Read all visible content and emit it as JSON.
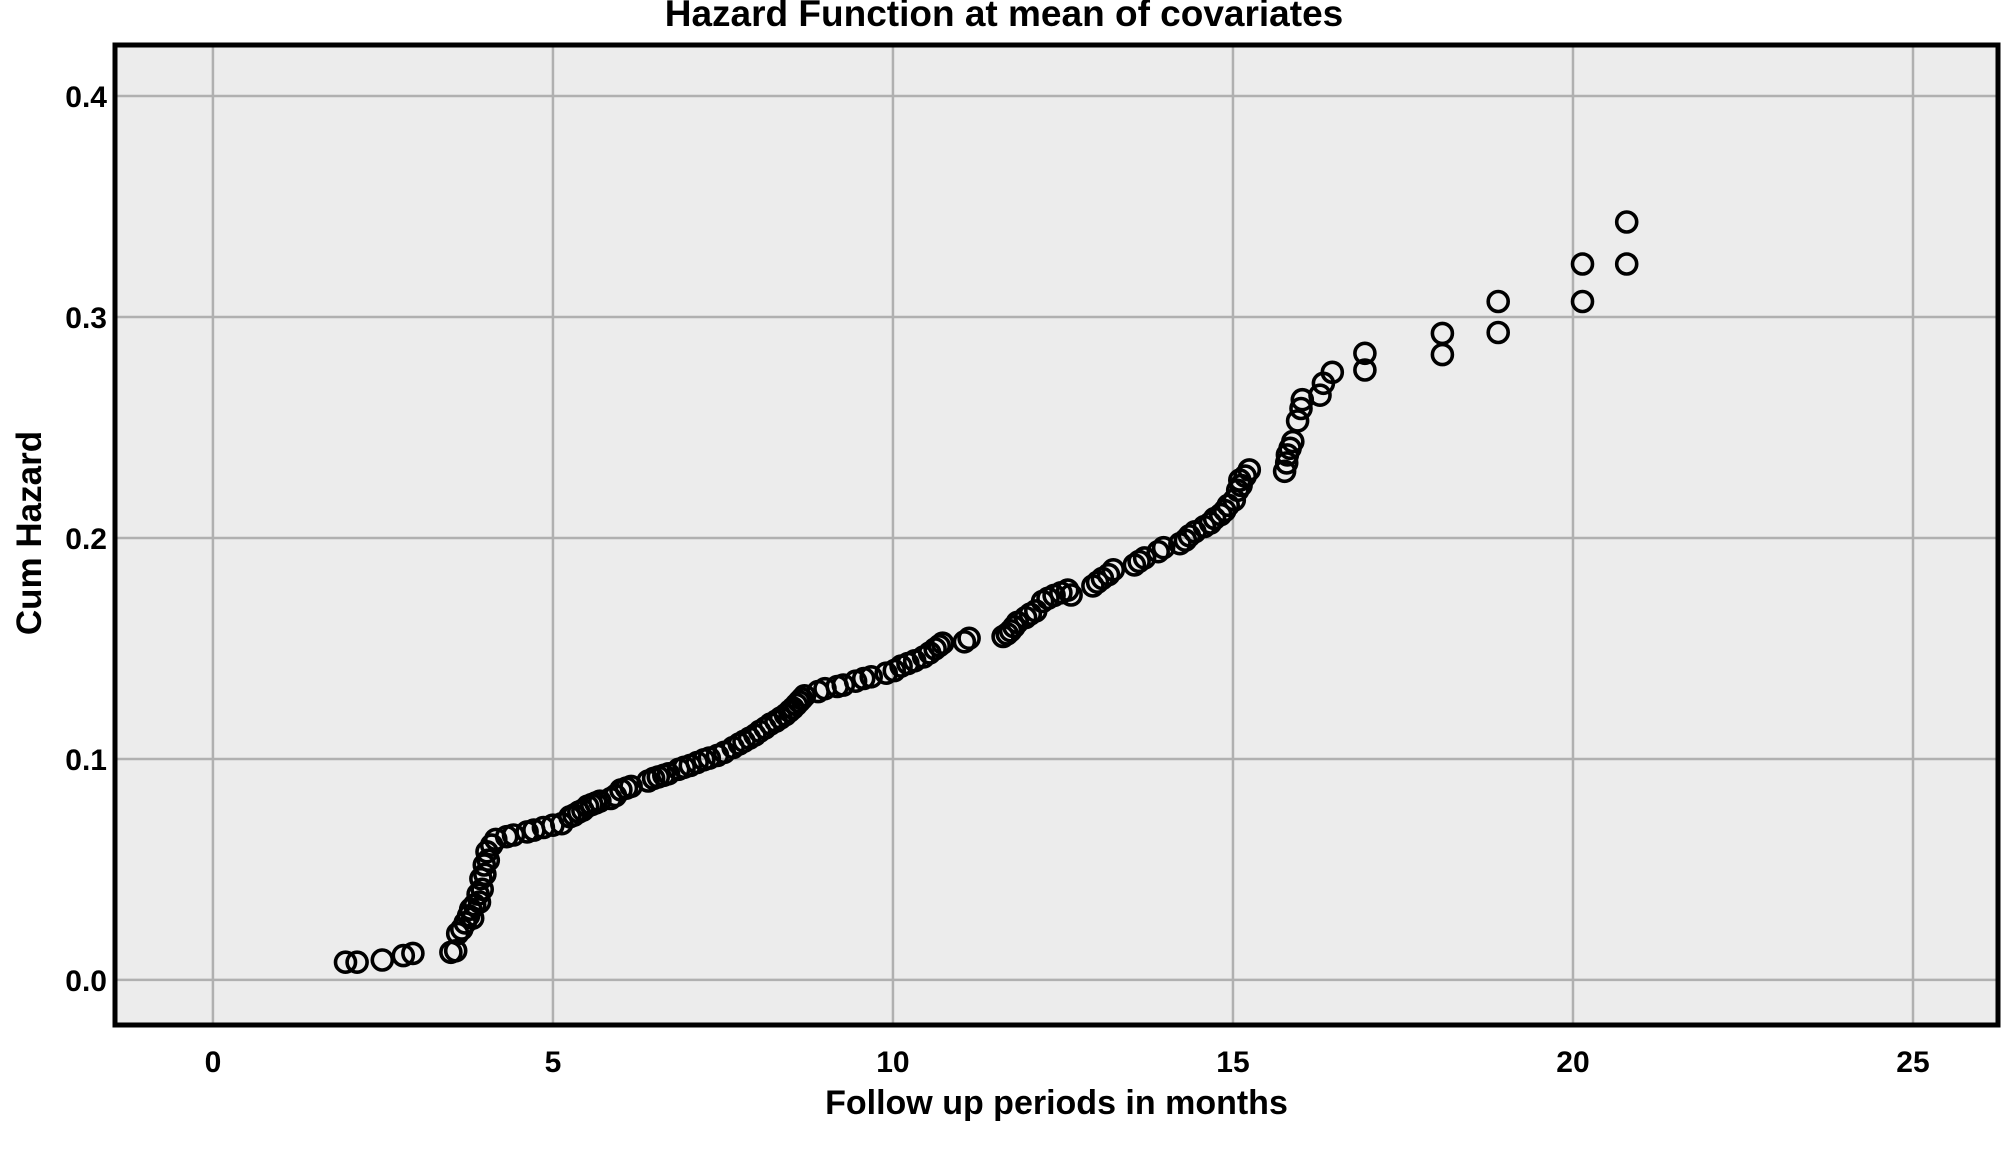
{
  "chart_data": {
    "type": "scatter",
    "title": "Hazard Function at mean of covariates",
    "xlabel": "Follow up periods in months",
    "ylabel": "Cum Hazard",
    "legend": "none",
    "grid": true,
    "plot_background": "#ececec",
    "grid_color": "#b0b0b0",
    "frame_color": "#000000",
    "marker": {
      "shape": "open-circle",
      "radius_px": 10,
      "stroke_px": 3.6,
      "color": "#000000"
    },
    "xlim": [
      -1.44,
      26.25
    ],
    "ylim": [
      -0.0204,
      0.4231
    ],
    "x_ticks": [
      0,
      5,
      10,
      15,
      20,
      25
    ],
    "x_tick_labels": [
      "0",
      "5",
      "10",
      "15",
      "20",
      "25"
    ],
    "y_ticks": [
      0.0,
      0.1,
      0.2,
      0.3,
      0.4
    ],
    "y_tick_labels": [
      "0.0",
      "0.1",
      "0.2",
      "0.3",
      "0.4"
    ],
    "points": [
      [
        1.95,
        0.008
      ],
      [
        2.12,
        0.008
      ],
      [
        2.49,
        0.009
      ],
      [
        2.8,
        0.011
      ],
      [
        2.94,
        0.012
      ],
      [
        3.5,
        0.0125
      ],
      [
        3.57,
        0.0132
      ],
      [
        3.6,
        0.021
      ],
      [
        3.66,
        0.023
      ],
      [
        3.71,
        0.0258
      ],
      [
        3.76,
        0.029
      ],
      [
        3.82,
        0.028
      ],
      [
        3.79,
        0.032
      ],
      [
        3.85,
        0.034
      ],
      [
        3.92,
        0.0352
      ],
      [
        3.9,
        0.0388
      ],
      [
        3.96,
        0.041
      ],
      [
        3.94,
        0.0458
      ],
      [
        4.0,
        0.0478
      ],
      [
        3.99,
        0.052
      ],
      [
        4.05,
        0.0542
      ],
      [
        4.03,
        0.058
      ],
      [
        4.1,
        0.061
      ],
      [
        4.16,
        0.0636
      ],
      [
        4.32,
        0.0648
      ],
      [
        4.42,
        0.0656
      ],
      [
        4.62,
        0.067
      ],
      [
        4.72,
        0.0678
      ],
      [
        4.86,
        0.069
      ],
      [
        5.0,
        0.07
      ],
      [
        5.13,
        0.0707
      ],
      [
        5.25,
        0.0738
      ],
      [
        5.31,
        0.0746
      ],
      [
        5.38,
        0.076
      ],
      [
        5.44,
        0.0768
      ],
      [
        5.51,
        0.0786
      ],
      [
        5.57,
        0.0794
      ],
      [
        5.63,
        0.0801
      ],
      [
        5.69,
        0.0809
      ],
      [
        5.85,
        0.0821
      ],
      [
        5.92,
        0.0834
      ],
      [
        6.0,
        0.086
      ],
      [
        6.08,
        0.0868
      ],
      [
        6.15,
        0.0876
      ],
      [
        6.4,
        0.09
      ],
      [
        6.48,
        0.0912
      ],
      [
        6.55,
        0.0919
      ],
      [
        6.63,
        0.0926
      ],
      [
        6.7,
        0.0933
      ],
      [
        6.85,
        0.0953
      ],
      [
        6.93,
        0.0962
      ],
      [
        7.02,
        0.0971
      ],
      [
        7.12,
        0.0984
      ],
      [
        7.22,
        0.0996
      ],
      [
        7.3,
        0.1004
      ],
      [
        7.42,
        0.1016
      ],
      [
        7.52,
        0.103
      ],
      [
        7.65,
        0.1052
      ],
      [
        7.74,
        0.1068
      ],
      [
        7.81,
        0.108
      ],
      [
        7.89,
        0.1094
      ],
      [
        7.97,
        0.1108
      ],
      [
        8.04,
        0.1125
      ],
      [
        8.12,
        0.114
      ],
      [
        8.2,
        0.1158
      ],
      [
        8.28,
        0.1171
      ],
      [
        8.35,
        0.1186
      ],
      [
        8.42,
        0.12
      ],
      [
        8.48,
        0.1216
      ],
      [
        8.53,
        0.123
      ],
      [
        8.58,
        0.1246
      ],
      [
        8.62,
        0.1259
      ],
      [
        8.66,
        0.1272
      ],
      [
        8.7,
        0.1286
      ],
      [
        8.9,
        0.1305
      ],
      [
        9.0,
        0.1318
      ],
      [
        9.18,
        0.1328
      ],
      [
        9.27,
        0.1334
      ],
      [
        9.45,
        0.1352
      ],
      [
        9.57,
        0.1364
      ],
      [
        9.68,
        0.1372
      ],
      [
        9.9,
        0.1388
      ],
      [
        10.02,
        0.14
      ],
      [
        10.12,
        0.142
      ],
      [
        10.22,
        0.1432
      ],
      [
        10.32,
        0.1444
      ],
      [
        10.45,
        0.1462
      ],
      [
        10.54,
        0.148
      ],
      [
        10.62,
        0.1498
      ],
      [
        10.68,
        0.1512
      ],
      [
        10.73,
        0.1524
      ],
      [
        11.05,
        0.153
      ],
      [
        11.12,
        0.1546
      ],
      [
        11.62,
        0.1554
      ],
      [
        11.68,
        0.1566
      ],
      [
        11.73,
        0.158
      ],
      [
        11.78,
        0.1598
      ],
      [
        11.83,
        0.1618
      ],
      [
        11.95,
        0.164
      ],
      [
        12.02,
        0.1656
      ],
      [
        12.1,
        0.167
      ],
      [
        12.2,
        0.1713
      ],
      [
        12.28,
        0.1727
      ],
      [
        12.37,
        0.174
      ],
      [
        12.47,
        0.1752
      ],
      [
        12.57,
        0.1764
      ],
      [
        12.62,
        0.1742
      ],
      [
        12.94,
        0.1783
      ],
      [
        13.01,
        0.18
      ],
      [
        13.08,
        0.1817
      ],
      [
        13.17,
        0.1834
      ],
      [
        13.24,
        0.1856
      ],
      [
        13.55,
        0.1878
      ],
      [
        13.62,
        0.1894
      ],
      [
        13.7,
        0.191
      ],
      [
        13.9,
        0.1938
      ],
      [
        13.98,
        0.1956
      ],
      [
        14.22,
        0.1974
      ],
      [
        14.3,
        0.199
      ],
      [
        14.36,
        0.201
      ],
      [
        14.44,
        0.2028
      ],
      [
        14.58,
        0.2052
      ],
      [
        14.67,
        0.2068
      ],
      [
        14.73,
        0.2088
      ],
      [
        14.82,
        0.2106
      ],
      [
        14.88,
        0.2124
      ],
      [
        14.93,
        0.2148
      ],
      [
        15.02,
        0.2172
      ],
      [
        15.07,
        0.2216
      ],
      [
        15.12,
        0.2238
      ],
      [
        15.1,
        0.2262
      ],
      [
        15.18,
        0.228
      ],
      [
        15.24,
        0.2308
      ],
      [
        15.76,
        0.2302
      ],
      [
        15.79,
        0.234
      ],
      [
        15.8,
        0.2376
      ],
      [
        15.84,
        0.2406
      ],
      [
        15.88,
        0.2436
      ],
      [
        15.95,
        0.253
      ],
      [
        16.0,
        0.2586
      ],
      [
        16.02,
        0.2626
      ],
      [
        16.28,
        0.2646
      ],
      [
        16.33,
        0.27
      ],
      [
        16.46,
        0.275
      ],
      [
        16.94,
        0.276
      ],
      [
        16.94,
        0.2836
      ],
      [
        18.08,
        0.283
      ],
      [
        18.08,
        0.2926
      ],
      [
        18.9,
        0.293
      ],
      [
        18.9,
        0.307
      ],
      [
        20.14,
        0.307
      ],
      [
        20.14,
        0.324
      ],
      [
        20.79,
        0.324
      ],
      [
        20.79,
        0.343
      ]
    ]
  }
}
